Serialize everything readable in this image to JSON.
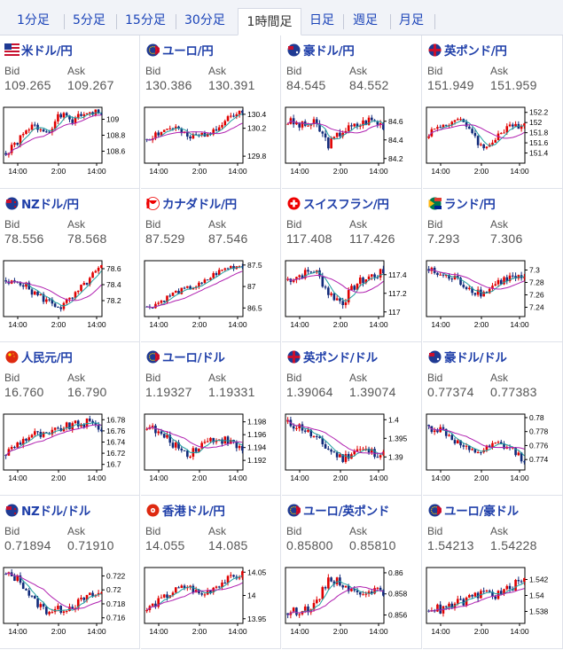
{
  "tabs": [
    {
      "label": "1分足",
      "active": false
    },
    {
      "label": "5分足",
      "active": false
    },
    {
      "label": "15分足",
      "active": false
    },
    {
      "label": "30分足",
      "active": false
    },
    {
      "label": "1時間足",
      "active": true
    },
    {
      "label": "日足",
      "active": false
    },
    {
      "label": "週足",
      "active": false
    },
    {
      "label": "月足",
      "active": false
    }
  ],
  "labels": {
    "bid": "Bid",
    "ask": "Ask"
  },
  "colors": {
    "link": "#1f3fa9",
    "candle": "#e00000",
    "candle_down": "#102a7a",
    "ma_fast": "#20a0a0",
    "ma_slow": "#b020b0"
  },
  "pairs": [
    {
      "name": "米ドル/円",
      "flag": "us",
      "bid": "109.265",
      "ask": "109.267",
      "chart_data": {
        "type": "candlestick",
        "x_ticks": [
          "14:00",
          "2:00",
          "14:00"
        ],
        "y_ticks": [
          "109",
          "108.8",
          "108.6"
        ],
        "ylim": [
          108.45,
          109.15
        ],
        "trend": [
          108.55,
          108.75,
          108.92,
          108.85,
          109.05,
          108.98,
          109.1,
          109.08
        ],
        "vol": 0.05,
        "seed": 1
      }
    },
    {
      "name": "ユーロ/円",
      "flag": "eu",
      "bid": "130.386",
      "ask": "130.391",
      "chart_data": {
        "type": "candlestick",
        "x_ticks": [
          "14:00",
          "2:00",
          "14:00"
        ],
        "y_ticks": [
          "130.4",
          "130.2",
          "129.8"
        ],
        "ylim": [
          129.7,
          130.5
        ],
        "trend": [
          130.05,
          130.15,
          130.22,
          130.05,
          130.1,
          130.2,
          130.38,
          130.4
        ],
        "vol": 0.06,
        "seed": 2
      }
    },
    {
      "name": "豪ドル/円",
      "flag": "au",
      "bid": "84.545",
      "ask": "84.552",
      "chart_data": {
        "type": "candlestick",
        "x_ticks": [
          "14:00",
          "2:00",
          "14:00"
        ],
        "y_ticks": [
          "84.6",
          "84.4",
          "84.2"
        ],
        "ylim": [
          84.15,
          84.75
        ],
        "trend": [
          84.6,
          84.55,
          84.58,
          84.35,
          84.5,
          84.55,
          84.62,
          84.56
        ],
        "vol": 0.05,
        "seed": 3
      }
    },
    {
      "name": "英ポンド/円",
      "flag": "gb",
      "bid": "151.949",
      "ask": "151.959",
      "chart_data": {
        "type": "candlestick",
        "x_ticks": [
          "14:00",
          "2:00",
          "14:00"
        ],
        "y_ticks": [
          "152.2",
          "152",
          "151.8",
          "151.6",
          "151.4"
        ],
        "ylim": [
          151.2,
          152.3
        ],
        "trend": [
          151.8,
          151.95,
          152.05,
          151.9,
          151.45,
          151.75,
          151.9,
          152.0
        ],
        "vol": 0.08,
        "seed": 4
      }
    },
    {
      "name": "NZドル/円",
      "flag": "nz",
      "bid": "78.556",
      "ask": "78.568",
      "chart_data": {
        "type": "candlestick",
        "x_ticks": [
          "14:00",
          "2:00",
          "14:00"
        ],
        "y_ticks": [
          "78.6",
          "78.4",
          "78.2"
        ],
        "ylim": [
          78.0,
          78.7
        ],
        "trend": [
          78.4,
          78.45,
          78.3,
          78.2,
          78.12,
          78.25,
          78.45,
          78.62
        ],
        "vol": 0.05,
        "seed": 5
      }
    },
    {
      "name": "カナダドル/円",
      "flag": "ca",
      "bid": "87.529",
      "ask": "87.546",
      "chart_data": {
        "type": "candlestick",
        "x_ticks": [
          "14:00",
          "2:00",
          "14:00"
        ],
        "y_ticks": [
          "87.5",
          "87",
          "86.5"
        ],
        "ylim": [
          86.3,
          87.6
        ],
        "trend": [
          86.5,
          86.65,
          86.85,
          86.95,
          87.05,
          87.3,
          87.45,
          87.5
        ],
        "vol": 0.07,
        "seed": 6
      }
    },
    {
      "name": "スイスフラン/円",
      "flag": "ch",
      "bid": "117.408",
      "ask": "117.426",
      "chart_data": {
        "type": "candlestick",
        "x_ticks": [
          "14:00",
          "2:00",
          "14:00"
        ],
        "y_ticks": [
          "117.4",
          "117.2",
          "117"
        ],
        "ylim": [
          116.95,
          117.55
        ],
        "trend": [
          117.35,
          117.4,
          117.45,
          117.2,
          117.1,
          117.3,
          117.38,
          117.42
        ],
        "vol": 0.05,
        "seed": 7
      }
    },
    {
      "name": "ランド/円",
      "flag": "za",
      "bid": "7.293",
      "ask": "7.306",
      "chart_data": {
        "type": "candlestick",
        "x_ticks": [
          "14:00",
          "2:00",
          "14:00"
        ],
        "y_ticks": [
          "7.3",
          "7.28",
          "7.26",
          "7.24"
        ],
        "ylim": [
          7.225,
          7.315
        ],
        "trend": [
          7.3,
          7.29,
          7.285,
          7.27,
          7.262,
          7.28,
          7.288,
          7.285
        ],
        "vol": 0.007,
        "seed": 8
      }
    },
    {
      "name": "人民元/円",
      "flag": "cn",
      "bid": "16.760",
      "ask": "16.790",
      "chart_data": {
        "type": "candlestick",
        "x_ticks": [
          "14:00",
          "2:00",
          "14:00"
        ],
        "y_ticks": [
          "16.78",
          "16.76",
          "16.74",
          "16.72",
          "16.7"
        ],
        "ylim": [
          16.69,
          16.79
        ],
        "trend": [
          16.72,
          16.74,
          16.755,
          16.75,
          16.765,
          16.77,
          16.775,
          16.765
        ],
        "vol": 0.008,
        "seed": 9
      }
    },
    {
      "name": "ユーロ/ドル",
      "flag": "eu",
      "bid": "1.19327",
      "ask": "1.19331",
      "chart_data": {
        "type": "candlestick",
        "x_ticks": [
          "14:00",
          "2:00",
          "14:00"
        ],
        "y_ticks": [
          "1.198",
          "1.196",
          "1.194",
          "1.192"
        ],
        "ylim": [
          1.1905,
          1.1992
        ],
        "trend": [
          1.1975,
          1.196,
          1.1945,
          1.193,
          1.1945,
          1.1955,
          1.195,
          1.1935
        ],
        "vol": 0.0007,
        "seed": 10
      }
    },
    {
      "name": "英ポンド/ドル",
      "flag": "gb",
      "bid": "1.39064",
      "ask": "1.39074",
      "chart_data": {
        "type": "candlestick",
        "x_ticks": [
          "14:00",
          "2:00",
          "14:00"
        ],
        "y_ticks": [
          "1.4",
          "1.395",
          "1.39"
        ],
        "ylim": [
          1.3865,
          1.4015
        ],
        "trend": [
          1.399,
          1.398,
          1.395,
          1.392,
          1.3895,
          1.392,
          1.3915,
          1.3905
        ],
        "vol": 0.0012,
        "seed": 11
      }
    },
    {
      "name": "豪ドル/ドル",
      "flag": "au",
      "bid": "0.77374",
      "ask": "0.77383",
      "chart_data": {
        "type": "candlestick",
        "x_ticks": [
          "14:00",
          "2:00",
          "14:00"
        ],
        "y_ticks": [
          "0.78",
          "0.778",
          "0.776",
          "0.774"
        ],
        "ylim": [
          0.7725,
          0.7805
        ],
        "trend": [
          0.7785,
          0.7782,
          0.7765,
          0.775,
          0.7752,
          0.7762,
          0.7755,
          0.774
        ],
        "vol": 0.0006,
        "seed": 12
      }
    },
    {
      "name": "NZドル/ドル",
      "flag": "nz",
      "bid": "0.71894",
      "ask": "0.71910",
      "chart_data": {
        "type": "candlestick",
        "x_ticks": [
          "14:00",
          "2:00",
          "14:00"
        ],
        "y_ticks": [
          "0.722",
          "0.72",
          "0.718",
          "0.716"
        ],
        "ylim": [
          0.7152,
          0.7232
        ],
        "trend": [
          0.7222,
          0.7215,
          0.7185,
          0.717,
          0.7172,
          0.7178,
          0.719,
          0.7195
        ],
        "vol": 0.0006,
        "seed": 13
      }
    },
    {
      "name": "香港ドル/円",
      "flag": "hk",
      "bid": "14.055",
      "ask": "14.085",
      "chart_data": {
        "type": "candlestick",
        "x_ticks": [
          "14:00",
          "2:00",
          "14:00"
        ],
        "y_ticks": [
          "14.05",
          "14",
          "13.95"
        ],
        "ylim": [
          13.94,
          14.06
        ],
        "trend": [
          13.97,
          13.99,
          14.01,
          14.02,
          14.0,
          14.02,
          14.035,
          14.045
        ],
        "vol": 0.008,
        "seed": 14
      }
    },
    {
      "name": "ユーロ/英ポンド",
      "flag": "eu",
      "bid": "0.85800",
      "ask": "0.85810",
      "chart_data": {
        "type": "candlestick",
        "x_ticks": [
          "14:00",
          "2:00",
          "14:00"
        ],
        "y_ticks": [
          "0.86",
          "0.858",
          "0.856"
        ],
        "ylim": [
          0.8552,
          0.8605
        ],
        "trend": [
          0.8562,
          0.8565,
          0.8568,
          0.8595,
          0.859,
          0.858,
          0.8585,
          0.858
        ],
        "vol": 0.0004,
        "seed": 15
      }
    },
    {
      "name": "ユーロ/豪ドル",
      "flag": "eu",
      "bid": "1.54213",
      "ask": "1.54228",
      "chart_data": {
        "type": "candlestick",
        "x_ticks": [
          "14:00",
          "2:00",
          "14:00"
        ],
        "y_ticks": [
          "1.542",
          "1.54",
          "1.538"
        ],
        "ylim": [
          1.5365,
          1.5435
        ],
        "trend": [
          1.5385,
          1.5382,
          1.539,
          1.5395,
          1.5405,
          1.54,
          1.541,
          1.542
        ],
        "vol": 0.0006,
        "seed": 16
      }
    }
  ]
}
